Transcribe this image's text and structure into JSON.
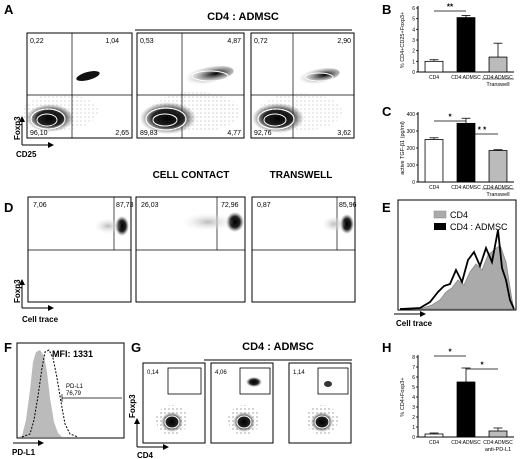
{
  "panels": {
    "A": {
      "letter": "A",
      "group_header": "CD4 : ADMSC",
      "y_axis": "Foxp3",
      "x_axis": "CD25",
      "plots": [
        {
          "ul": "0,22",
          "ur": "1,04",
          "ll": "96,10",
          "lr": "2,65"
        },
        {
          "ul": "0,53",
          "ur": "4,87",
          "ll": "89,83",
          "lr": "4,77"
        },
        {
          "ul": "0,72",
          "ur": "2,90",
          "ll": "92,76",
          "lr": "3,62"
        }
      ],
      "labels": [
        "CELL CONTACT",
        "TRANSWELL"
      ]
    },
    "B": {
      "letter": "B",
      "ylabel": "% CD4+CD25+Foxp3+",
      "yticks": [
        "0",
        "1",
        "2",
        "3",
        "4",
        "5",
        "6"
      ],
      "sig": "**",
      "categories": [
        "CD4",
        "CD4:ADMSC",
        "CD4:ADMSC"
      ],
      "group_label": "Transwell"
    },
    "C": {
      "letter": "C",
      "ylabel": "active TGF-β1 (pg/ml)",
      "yticks": [
        "0",
        "100",
        "200",
        "300",
        "400"
      ],
      "sig1": "*",
      "sig2": "* *",
      "categories": [
        "CD4",
        "CD4:ADMSC",
        "CD4:ADMSC"
      ],
      "group_label": "Transwell"
    },
    "D": {
      "letter": "D",
      "y_axis": "Foxp3",
      "x_axis": "Cell trace",
      "plots": [
        {
          "ul": "7,06",
          "ur": "87,73"
        },
        {
          "ul": "26,03",
          "ur": "72,96"
        },
        {
          "ul": "0,87",
          "ur": "85,96"
        }
      ]
    },
    "E": {
      "letter": "E",
      "legend": [
        "CD4",
        "CD4 : ADMSC"
      ],
      "x_axis": "Cell trace"
    },
    "F": {
      "letter": "F",
      "mfi": "MFI: 1331",
      "gate_label": "PD-L1",
      "gate_value": "76,79",
      "x_axis": "PD-L1"
    },
    "G": {
      "letter": "G",
      "group_header": "CD4 : ADMSC",
      "y_axis": "Foxp3",
      "x_axis": "CD4",
      "values": [
        "0,14",
        "4,06",
        "1,14"
      ]
    },
    "H": {
      "letter": "H",
      "ylabel": "% CD4+Foxp3+",
      "yticks": [
        "0",
        "1",
        "2",
        "3",
        "4",
        "5",
        "6",
        "7",
        "8"
      ],
      "sig1": "*",
      "sig2": "*",
      "categories": [
        "CD4",
        "CD4:ADMSC",
        "CD4:ADMSC"
      ],
      "extra_label": "anti-PD-L1"
    }
  },
  "chart_data": [
    {
      "type": "bar",
      "categories": [
        "CD4",
        "CD4:ADMSC",
        "CD4:ADMSC"
      ],
      "values": [
        1.0,
        5.1,
        1.4
      ],
      "errors": [
        0.15,
        0.2,
        1.3
      ],
      "ylabel": "% CD4+CD25+Foxp3+",
      "ylim": [
        0,
        6
      ],
      "colors": [
        "#ffffff",
        "#000000",
        "#bbbbbb"
      ]
    },
    {
      "type": "bar",
      "categories": [
        "CD4",
        "CD4:ADMSC",
        "CD4:ADMSC"
      ],
      "values": [
        250,
        345,
        185
      ],
      "errors": [
        10,
        30,
        5
      ],
      "ylabel": "active TGF-β1 (pg/ml)",
      "ylim": [
        0,
        400
      ],
      "colors": [
        "#ffffff",
        "#000000",
        "#bbbbbb"
      ]
    },
    {
      "type": "bar",
      "categories": [
        "CD4",
        "CD4:ADMSC",
        "CD4:ADMSC"
      ],
      "values": [
        0.3,
        5.5,
        0.6
      ],
      "errors": [
        0.1,
        1.4,
        0.3
      ],
      "ylabel": "% CD4+Foxp3+",
      "ylim": [
        0,
        8
      ],
      "colors": [
        "#ffffff",
        "#000000",
        "#bbbbbb"
      ]
    }
  ]
}
